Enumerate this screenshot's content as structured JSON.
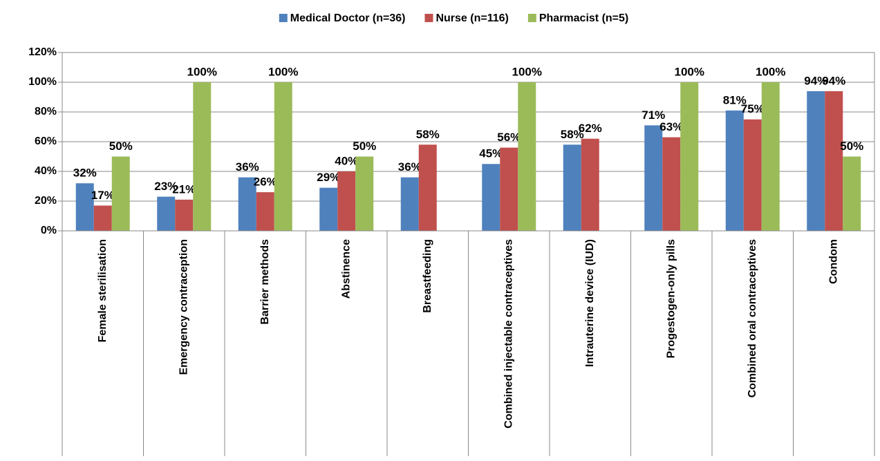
{
  "chart_data": {
    "type": "bar",
    "categories": [
      "Female sterilisation",
      "Emergency contraception",
      "Barrier methods",
      "Abstinence",
      "Breastfeeding",
      "Combined injectable contraceptives",
      "Intrauterine device (IUD)",
      "Progestogen-only pills",
      "Combined oral contraceptives",
      "Condom"
    ],
    "series": [
      {
        "name": "Medical Doctor (n=36)",
        "color": "#4f81bd",
        "values": [
          32,
          23,
          36,
          29,
          36,
          45,
          58,
          71,
          81,
          94
        ],
        "value_labels": [
          "32%",
          "23%",
          "36%",
          "29%",
          "36%",
          "45%",
          "58%",
          "71%",
          "81%",
          "94%"
        ]
      },
      {
        "name": "Nurse (n=116)",
        "color": "#c0504d",
        "values": [
          17,
          21,
          26,
          40,
          58,
          56,
          62,
          63,
          75,
          94
        ],
        "value_labels": [
          "17%",
          "21%",
          "26%",
          "40%",
          "58%",
          "56%",
          "62%",
          "63%",
          "75%",
          "94%"
        ]
      },
      {
        "name": "Pharmacist (n=5)",
        "color": "#9bbb59",
        "values": [
          50,
          100,
          100,
          50,
          null,
          100,
          null,
          100,
          100,
          50
        ],
        "value_labels": [
          "50%",
          "100%",
          "100%",
          "50%",
          null,
          "100%",
          null,
          "100%",
          "100%",
          "50%"
        ]
      }
    ],
    "ylim": [
      0,
      120
    ],
    "yticks": [
      {
        "value": 0,
        "label": "0%"
      },
      {
        "value": 20,
        "label": "20%"
      },
      {
        "value": 40,
        "label": "40%"
      },
      {
        "value": 60,
        "label": "60%"
      },
      {
        "value": 80,
        "label": "80%"
      },
      {
        "value": 100,
        "label": "100%"
      },
      {
        "value": 120,
        "label": "120%"
      }
    ],
    "grid": true,
    "legend": "top"
  }
}
